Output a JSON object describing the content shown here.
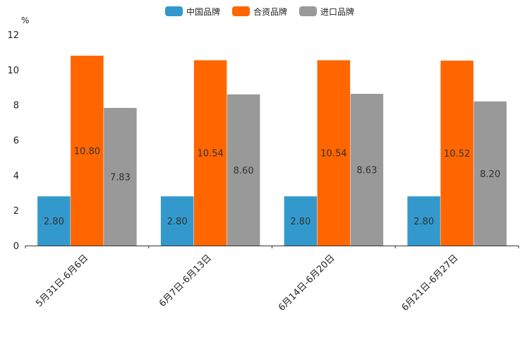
{
  "chart_data": {
    "type": "bar",
    "title": "",
    "xlabel": "",
    "ylabel": "%",
    "ylim": [
      0,
      12
    ],
    "yticks": [
      0,
      2,
      4,
      6,
      8,
      10,
      12
    ],
    "grid": false,
    "legend_position": "top-center",
    "categories": [
      "5月31日-6月6日",
      "6月7日-6月13日",
      "6月14日-6月20日",
      "6月21日-6月27日"
    ],
    "series": [
      {
        "name": "中国品牌",
        "color": "#3399cc",
        "values": [
          2.8,
          2.8,
          2.8,
          2.8
        ],
        "labels": [
          "2.80",
          "2.80",
          "2.80",
          "2.80"
        ]
      },
      {
        "name": "合资品牌",
        "color": "#ff6600",
        "values": [
          10.8,
          10.54,
          10.54,
          10.52
        ],
        "labels": [
          "10.80",
          "10.54",
          "10.54",
          "10.52"
        ]
      },
      {
        "name": "进口品牌",
        "color": "#999999",
        "values": [
          7.83,
          8.6,
          8.63,
          8.2
        ],
        "labels": [
          "7.83",
          "8.60",
          "8.63",
          "8.20"
        ]
      }
    ]
  }
}
